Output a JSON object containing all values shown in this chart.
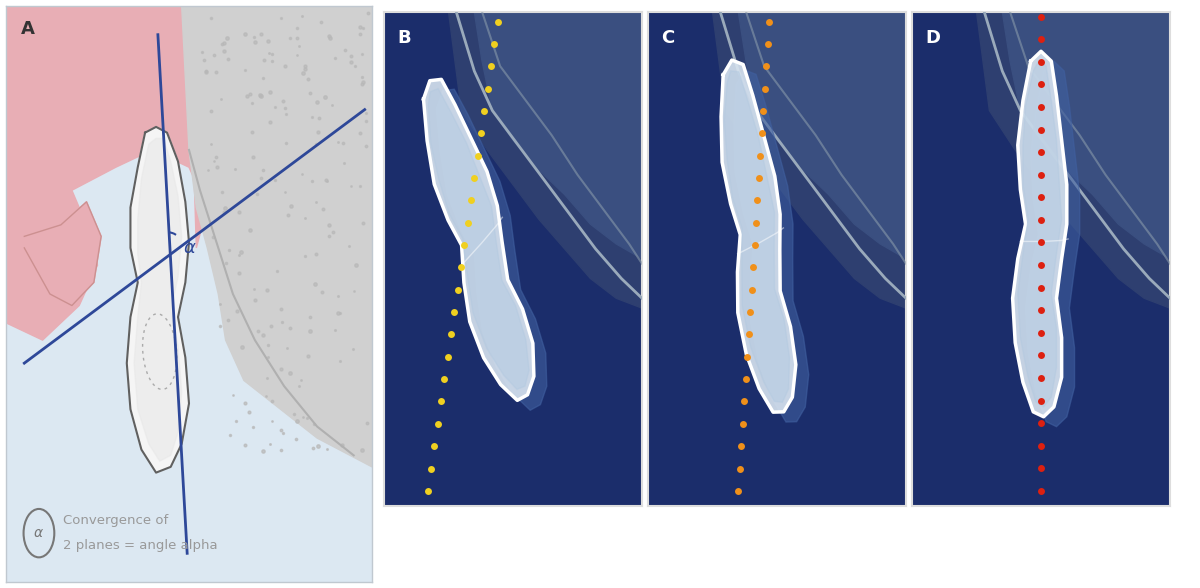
{
  "bg_color_A": "#dce8f2",
  "bg_color_BCD": "#1b2d6b",
  "gum_pink": "#e8aeb5",
  "bone_color": "#c5c5c5",
  "tooth_fill": "#f2f2f2",
  "tooth_shadow": "#d0d8e8",
  "blue_line": "#2e4899",
  "alpha_color": "#2e4899",
  "dot_B_color": "#f0d020",
  "dot_C_color": "#f0901a",
  "dot_D_color": "#dd2010",
  "tissue_dark": "#2a3d6e",
  "tissue_mid": "#3a5080",
  "bone_outline_color": "#8899bb",
  "tooth_outline_white": "#ffffff",
  "legend_text_color": "#999999",
  "panel_A_label": "A",
  "panel_B_label": "B",
  "panel_C_label": "C",
  "panel_D_label": "D",
  "legend_line1": "Convergence of",
  "legend_line2": "2 planes = angle alpha"
}
